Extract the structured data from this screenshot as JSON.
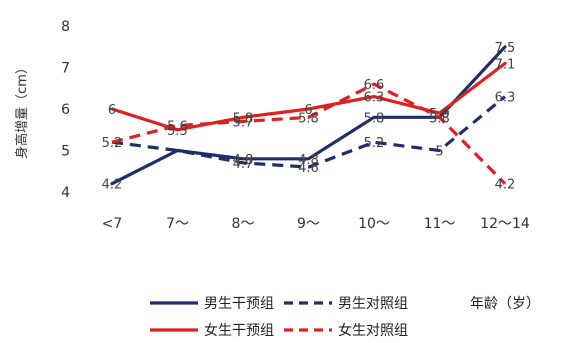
{
  "chart_data": {
    "type": "line",
    "categories": [
      "<7",
      "7～",
      "8～",
      "9～",
      "10～",
      "11～",
      "12～14"
    ],
    "ylabel": "身高增量（cm）",
    "xlabel": "年龄（岁）",
    "ylim": [
      4,
      8
    ],
    "yticks": [
      "4",
      "5",
      "6",
      "7",
      "8"
    ],
    "grid": false,
    "legend_position": "bottom",
    "series": [
      {
        "name": "男生干预组",
        "color": "#1f2d6b",
        "style": "solid",
        "values": [
          4.2,
          5.0,
          4.8,
          4.8,
          5.8,
          5.8,
          7.5
        ],
        "labels": [
          "4.2",
          "",
          "4.8",
          "4.8",
          "5.8",
          "",
          "7.5"
        ]
      },
      {
        "name": "男生对照组",
        "color": "#1f2d6b",
        "style": "dashed",
        "values": [
          5.2,
          5.0,
          4.7,
          4.6,
          5.2,
          5.0,
          6.3
        ],
        "labels": [
          "5.2",
          "",
          "4.7",
          "4.6",
          "5.2",
          "5",
          "6.3"
        ]
      },
      {
        "name": "女生干预组",
        "color": "#e02020",
        "style": "solid",
        "values": [
          6.0,
          5.5,
          5.8,
          6.0,
          6.3,
          5.9,
          7.1
        ],
        "labels": [
          "6",
          "5.5",
          "5.8",
          "6",
          "6.3",
          "5.9",
          "7.1"
        ]
      },
      {
        "name": "女生对照组",
        "color": "#e02020",
        "style": "dashed",
        "values": [
          5.2,
          5.6,
          5.7,
          5.8,
          6.6,
          5.8,
          4.2
        ],
        "labels": [
          "",
          "5.6",
          "5.7",
          "5.8",
          "6.6",
          "5.8",
          "4.2"
        ]
      }
    ]
  }
}
